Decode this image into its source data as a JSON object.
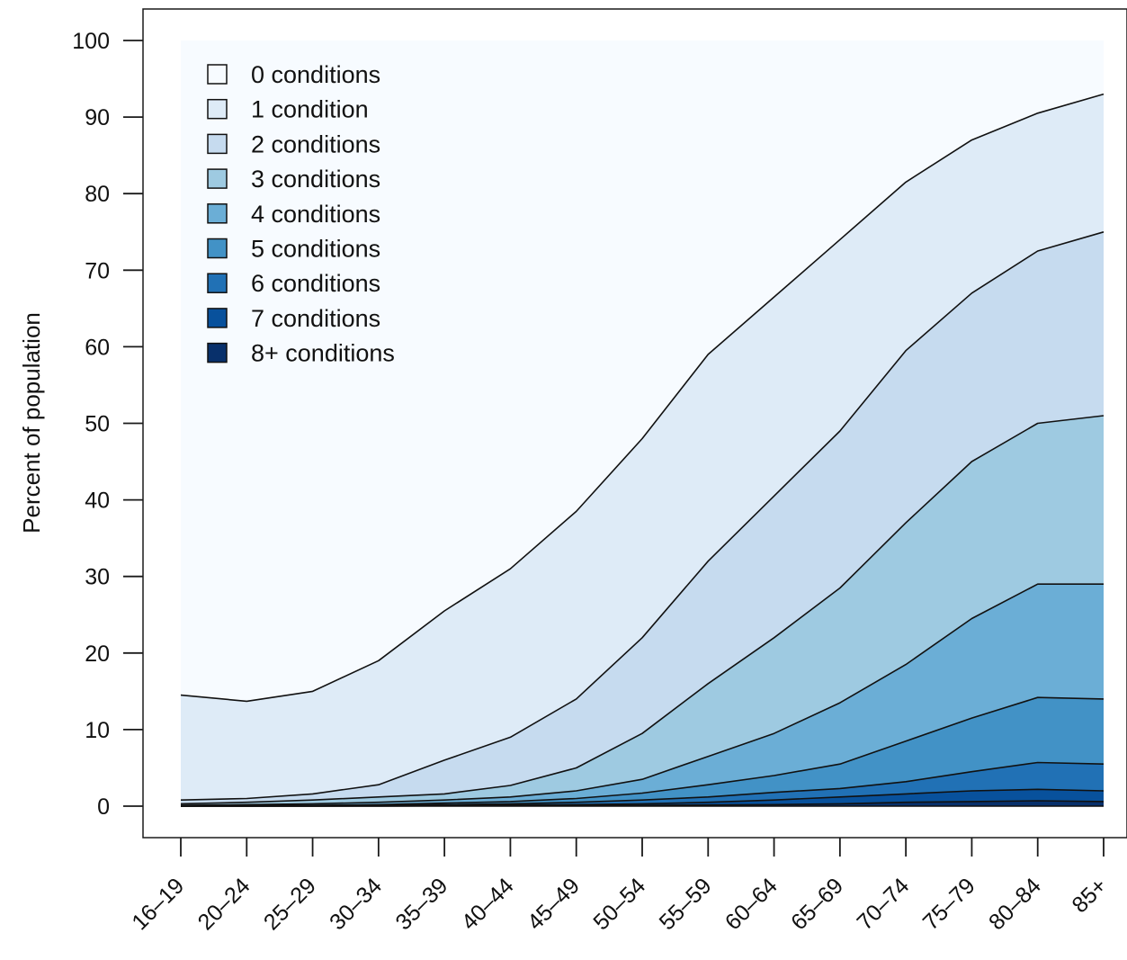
{
  "chart_data": {
    "type": "area",
    "stacked": true,
    "title": "",
    "xlabel": "",
    "ylabel": "Percent of population",
    "ylim": [
      0,
      100
    ],
    "yticks": [
      "0",
      "10",
      "20",
      "30",
      "40",
      "50",
      "60",
      "70",
      "80",
      "90",
      "100"
    ],
    "categories": [
      "16–19",
      "20–24",
      "25–29",
      "30–34",
      "35–39",
      "40–44",
      "45–49",
      "50–54",
      "55–59",
      "60–64",
      "65–69",
      "70–74",
      "75–79",
      "80–84",
      "85+"
    ],
    "grid": false,
    "legend_position": "top-left",
    "legend": [
      {
        "name": "0 conditions",
        "color": "#f7fbff"
      },
      {
        "name": "1 condition",
        "color": "#deebf7"
      },
      {
        "name": "2 conditions",
        "color": "#c6dbef"
      },
      {
        "name": "3 conditions",
        "color": "#9ecae1"
      },
      {
        "name": "4 conditions",
        "color": "#6baed6"
      },
      {
        "name": "5 conditions",
        "color": "#4292c6"
      },
      {
        "name": "6 conditions",
        "color": "#2171b5"
      },
      {
        "name": "7 conditions",
        "color": "#08519c"
      },
      {
        "name": "8+ conditions",
        "color": "#08306b"
      }
    ],
    "cumulative_series": [
      {
        "name": "1 condition",
        "values": [
          14.5,
          13.7,
          15.0,
          19.0,
          25.5,
          31.0,
          38.5,
          48.0,
          59.0,
          66.5,
          74.0,
          81.5,
          87.0,
          90.5,
          93.0
        ]
      },
      {
        "name": "2 conditions",
        "values": [
          0.8,
          1.0,
          1.6,
          2.8,
          6.0,
          9.0,
          14.0,
          22.0,
          32.0,
          40.5,
          49.0,
          59.5,
          67.0,
          72.5,
          75.0
        ]
      },
      {
        "name": "3 conditions",
        "values": [
          0.3,
          0.5,
          0.8,
          1.2,
          1.6,
          2.7,
          5.0,
          9.5,
          16.0,
          22.0,
          28.5,
          37.0,
          45.0,
          50.0,
          51.0
        ]
      },
      {
        "name": "4 conditions",
        "values": [
          0.1,
          0.2,
          0.3,
          0.5,
          0.8,
          1.2,
          2.0,
          3.5,
          6.5,
          9.5,
          13.5,
          18.5,
          24.5,
          29.0,
          29.0
        ]
      },
      {
        "name": "5 conditions",
        "values": [
          0.0,
          0.1,
          0.1,
          0.2,
          0.4,
          0.6,
          1.0,
          1.7,
          2.8,
          4.0,
          5.5,
          8.5,
          11.5,
          14.2,
          14.0
        ]
      },
      {
        "name": "6 conditions",
        "values": [
          0.0,
          0.0,
          0.05,
          0.1,
          0.2,
          0.3,
          0.5,
          0.8,
          1.2,
          1.8,
          2.3,
          3.2,
          4.5,
          5.7,
          5.5
        ]
      },
      {
        "name": "7 conditions",
        "values": [
          0.0,
          0.0,
          0.0,
          0.05,
          0.1,
          0.15,
          0.2,
          0.3,
          0.5,
          0.8,
          1.2,
          1.6,
          2.0,
          2.2,
          2.0
        ]
      },
      {
        "name": "8+ conditions",
        "values": [
          0.0,
          0.0,
          0.0,
          0.0,
          0.05,
          0.05,
          0.1,
          0.1,
          0.15,
          0.2,
          0.3,
          0.5,
          0.6,
          0.7,
          0.6
        ]
      }
    ]
  }
}
